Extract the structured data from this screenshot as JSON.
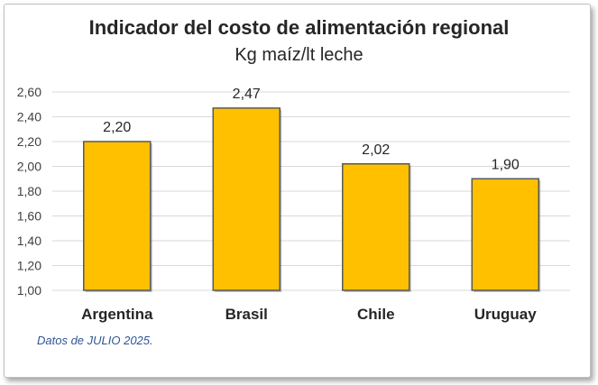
{
  "chart_data": {
    "type": "bar",
    "title": "Indicador del costo de alimentación regional",
    "subtitle": "Kg maíz/lt leche",
    "categories": [
      "Argentina",
      "Brasil",
      "Chile",
      "Uruguay"
    ],
    "values": [
      2.2,
      2.47,
      2.02,
      1.9
    ],
    "value_labels": [
      "2,20",
      "2,47",
      "2,02",
      "1,90"
    ],
    "ylim": [
      1.0,
      2.6
    ],
    "yticks": [
      1.0,
      1.2,
      1.4,
      1.6,
      1.8,
      2.0,
      2.2,
      2.4,
      2.6
    ],
    "ytick_labels": [
      "1,00",
      "1,20",
      "1,40",
      "1,60",
      "1,80",
      "2,00",
      "2,20",
      "2,40",
      "2,60"
    ],
    "grid": true,
    "legend": "none",
    "bar_color": "#ffc000",
    "bar_edge_color": "#595959",
    "gridline_color": "#d9d9d9"
  },
  "footnote": "Datos de JULIO 2025."
}
